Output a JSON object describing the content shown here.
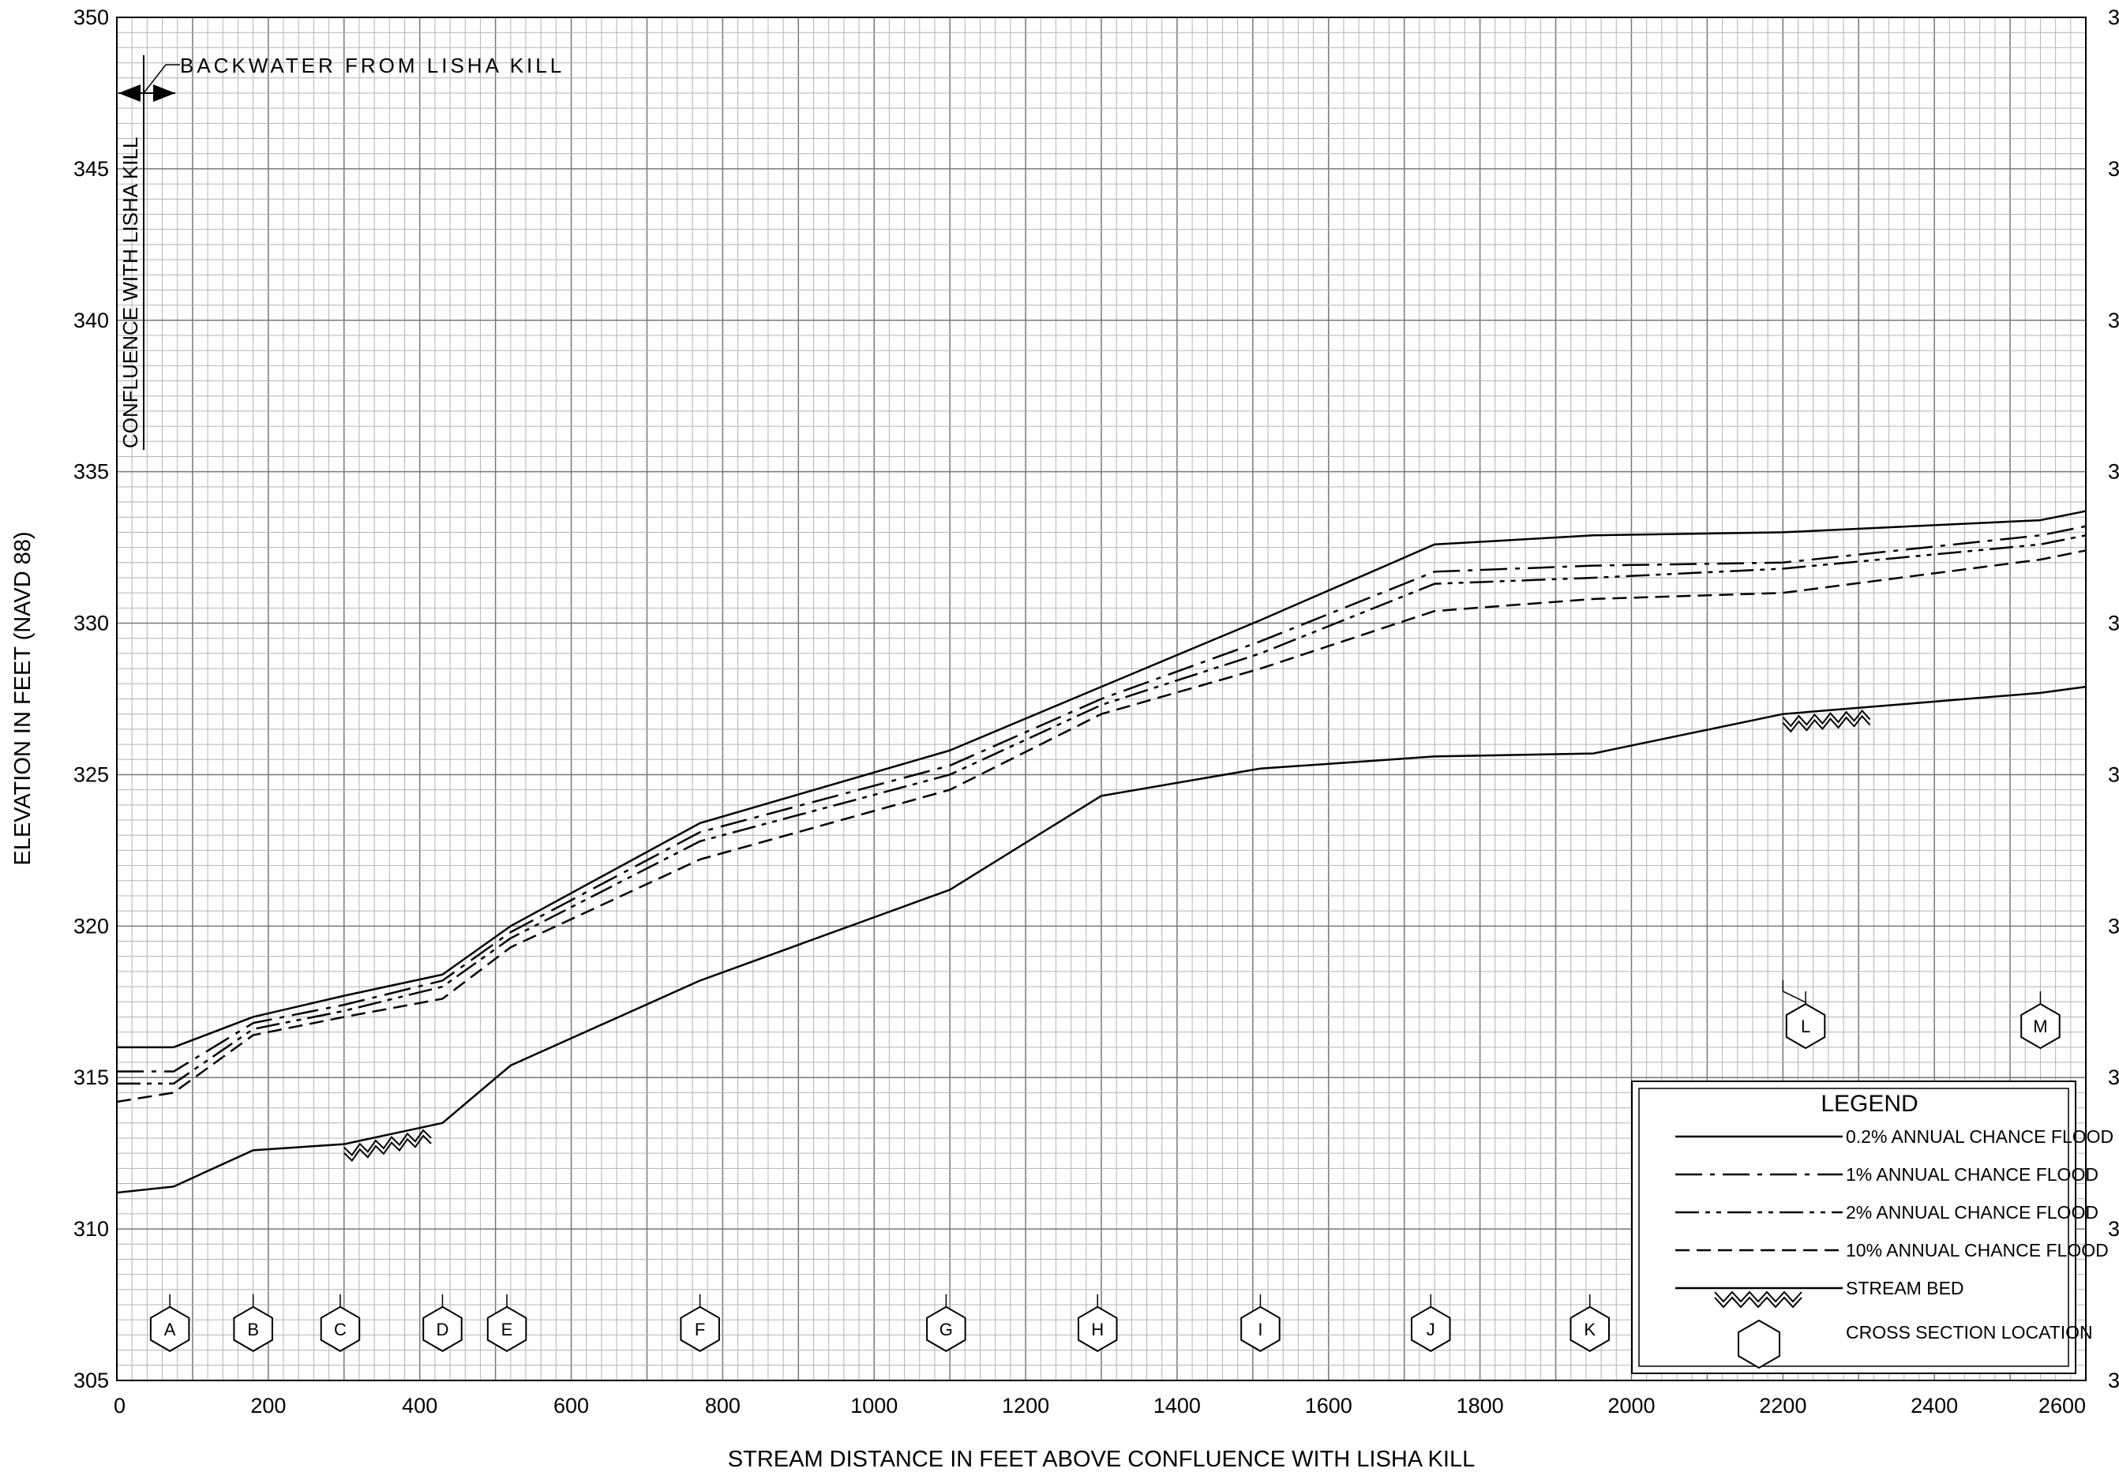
{
  "chart_data": {
    "type": "line",
    "title": "",
    "xlabel": "STREAM DISTANCE IN FEET ABOVE CONFLUENCE WITH LISHA KILL",
    "ylabel": "ELEVATION IN FEET (NAVD 88)",
    "xlim": [
      0,
      2600
    ],
    "ylim": [
      305,
      350
    ],
    "x_ticks": [
      0,
      200,
      400,
      600,
      800,
      1000,
      1200,
      1400,
      1600,
      1800,
      2000,
      2200,
      2400,
      2600
    ],
    "y_ticks": [
      305,
      310,
      315,
      320,
      325,
      330,
      335,
      340,
      345,
      350
    ],
    "grid": true,
    "legend_position": "bottom-right",
    "legend_title": "LEGEND",
    "annotations": {
      "backwater": "BACKWATER FROM LISHA KILL",
      "confluence": "CONFLUENCE WITH LISHA KILL"
    },
    "series": [
      {
        "name": "0.2% ANNUAL CHANCE FLOOD",
        "style": "solid",
        "points": [
          [
            0,
            316.0
          ],
          [
            75,
            316.0
          ],
          [
            180,
            317.0
          ],
          [
            300,
            317.7
          ],
          [
            430,
            318.4
          ],
          [
            520,
            320.0
          ],
          [
            770,
            323.4
          ],
          [
            1100,
            325.8
          ],
          [
            1300,
            327.9
          ],
          [
            1510,
            330.1
          ],
          [
            1740,
            332.6
          ],
          [
            1950,
            332.9
          ],
          [
            2200,
            333.0
          ],
          [
            2540,
            333.4
          ],
          [
            2600,
            333.7
          ]
        ]
      },
      {
        "name": "1% ANNUAL CHANCE FLOOD",
        "style": "dash-dot",
        "points": [
          [
            0,
            315.2
          ],
          [
            75,
            315.2
          ],
          [
            180,
            316.8
          ],
          [
            300,
            317.4
          ],
          [
            430,
            318.2
          ],
          [
            520,
            319.8
          ],
          [
            770,
            323.1
          ],
          [
            1100,
            325.3
          ],
          [
            1300,
            327.5
          ],
          [
            1510,
            329.4
          ],
          [
            1740,
            331.7
          ],
          [
            1950,
            331.9
          ],
          [
            2200,
            332.0
          ],
          [
            2540,
            332.9
          ],
          [
            2600,
            333.2
          ]
        ]
      },
      {
        "name": "2% ANNUAL CHANCE FLOOD",
        "style": "dash-dot-dot",
        "points": [
          [
            0,
            314.8
          ],
          [
            75,
            314.8
          ],
          [
            180,
            316.6
          ],
          [
            300,
            317.2
          ],
          [
            430,
            318.0
          ],
          [
            520,
            319.6
          ],
          [
            770,
            322.8
          ],
          [
            1100,
            325.0
          ],
          [
            1300,
            327.3
          ],
          [
            1510,
            329.0
          ],
          [
            1740,
            331.3
          ],
          [
            1950,
            331.5
          ],
          [
            2200,
            331.8
          ],
          [
            2540,
            332.6
          ],
          [
            2600,
            332.9
          ]
        ]
      },
      {
        "name": "10% ANNUAL CHANCE FLOOD",
        "style": "dashed",
        "points": [
          [
            0,
            314.2
          ],
          [
            75,
            314.5
          ],
          [
            180,
            316.4
          ],
          [
            300,
            317.0
          ],
          [
            430,
            317.6
          ],
          [
            520,
            319.3
          ],
          [
            770,
            322.2
          ],
          [
            1100,
            324.5
          ],
          [
            1300,
            327.0
          ],
          [
            1510,
            328.5
          ],
          [
            1740,
            330.4
          ],
          [
            1950,
            330.8
          ],
          [
            2200,
            331.0
          ],
          [
            2540,
            332.1
          ],
          [
            2600,
            332.4
          ]
        ]
      },
      {
        "name": "STREAM BED",
        "style": "streambed",
        "points": [
          [
            0,
            311.2
          ],
          [
            75,
            311.4
          ],
          [
            180,
            312.6
          ],
          [
            300,
            312.8
          ],
          [
            430,
            313.5
          ],
          [
            520,
            315.4
          ],
          [
            770,
            318.2
          ],
          [
            1100,
            321.2
          ],
          [
            1300,
            324.3
          ],
          [
            1510,
            325.2
          ],
          [
            1740,
            325.6
          ],
          [
            1950,
            325.7
          ],
          [
            2200,
            327.0
          ],
          [
            2540,
            327.7
          ],
          [
            2600,
            327.9
          ]
        ]
      }
    ],
    "cross_sections": [
      {
        "label": "A",
        "x": 70,
        "elev": 306.7
      },
      {
        "label": "B",
        "x": 180,
        "elev": 306.7
      },
      {
        "label": "C",
        "x": 295,
        "elev": 306.7
      },
      {
        "label": "D",
        "x": 430,
        "elev": 306.7
      },
      {
        "label": "E",
        "x": 515,
        "elev": 306.7
      },
      {
        "label": "F",
        "x": 770,
        "elev": 306.7
      },
      {
        "label": "G",
        "x": 1095,
        "elev": 306.7
      },
      {
        "label": "H",
        "x": 1295,
        "elev": 306.7
      },
      {
        "label": "I",
        "x": 1510,
        "elev": 306.7
      },
      {
        "label": "J",
        "x": 1735,
        "elev": 306.7
      },
      {
        "label": "K",
        "x": 1945,
        "elev": 306.7
      },
      {
        "label": "L",
        "x": 2230,
        "elev": 316.7
      },
      {
        "label": "M",
        "x": 2540,
        "elev": 316.7
      }
    ],
    "legend_extra": "CROSS SECTION LOCATION"
  }
}
